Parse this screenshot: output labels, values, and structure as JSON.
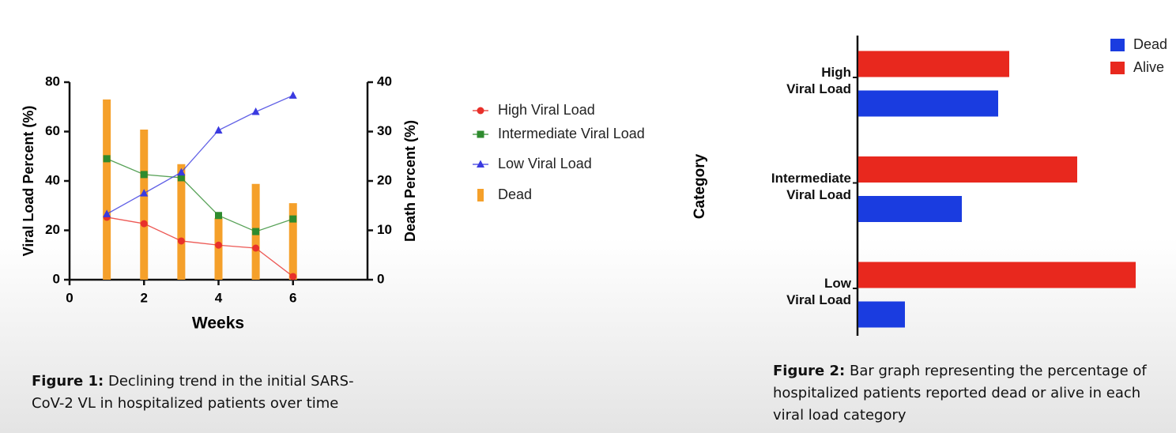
{
  "chart_data": [
    {
      "type": "combo",
      "caption_label": "Figure 1:",
      "caption": "Declining trend in the initial SARS-CoV-2 VL in hospitalized patients over time",
      "x_label": "Weeks",
      "y_label": "Viral Load Percent (%)",
      "y2_label": "Death Percent (%)",
      "xlim": [
        0,
        8
      ],
      "xticks": [
        0,
        2,
        4,
        6
      ],
      "ylim": [
        0,
        80
      ],
      "yticks": [
        0,
        20,
        40,
        60,
        80
      ],
      "y2lim": [
        0,
        40
      ],
      "y2ticks": [
        0,
        10,
        20,
        30,
        40
      ],
      "x": [
        1,
        2,
        3,
        4,
        5,
        6
      ],
      "series": [
        {
          "name": "High Viral Load",
          "type": "line",
          "marker": "circle",
          "color": "#e8302a",
          "values": [
            25.3,
            22.7,
            15.7,
            14,
            12.8,
            1.3
          ]
        },
        {
          "name": "Intermediate Viral Load",
          "type": "line",
          "marker": "square",
          "color": "#2e8b2e",
          "values": [
            49,
            42.6,
            41.3,
            26,
            19.5,
            24.6
          ]
        },
        {
          "name": "Low Viral Load",
          "type": "line",
          "marker": "triangle",
          "color": "#3a3ae0",
          "values": [
            26.6,
            35,
            43.5,
            60.5,
            68,
            74.6
          ]
        },
        {
          "name": "Dead",
          "type": "bar",
          "axis": "y2",
          "color": "#f5a02a",
          "values": [
            36.5,
            30.4,
            23.4,
            12.5,
            19.4,
            15.5
          ]
        }
      ]
    },
    {
      "type": "hbar",
      "caption_label": "Figure 2:",
      "caption": "Bar graph representing the percentage of hospitalized patients reported dead or alive in each viral load category",
      "y_label": "Category",
      "categories": [
        "High\nViral Load",
        "Intermediate\nViral Load",
        "Low\nViral Load"
      ],
      "xlim": [
        0,
        100
      ],
      "series": [
        {
          "name": "Dead",
          "color": "#1a3ce0",
          "values": [
            44.5,
            33,
            15
          ]
        },
        {
          "name": "Alive",
          "color": "#e8281e",
          "values": [
            48,
            69.5,
            88
          ]
        }
      ]
    }
  ]
}
